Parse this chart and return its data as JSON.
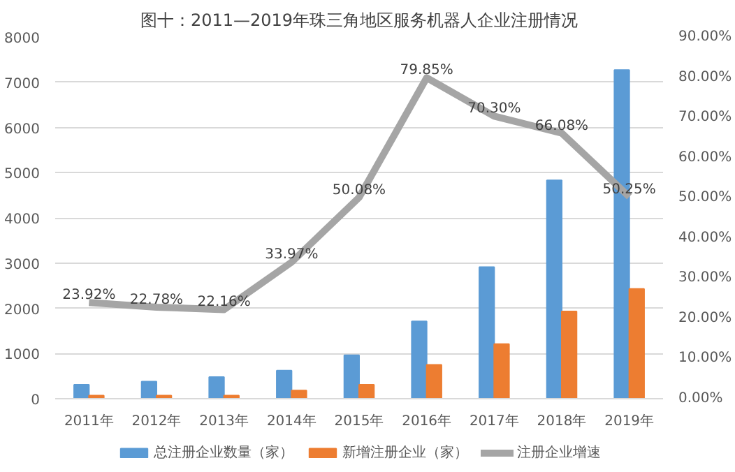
{
  "chart_data": {
    "type": "bar",
    "title": "图十：2011—2019年珠三角地区服务机器人企业注册情况",
    "categories": [
      "2011年",
      "2012年",
      "2013年",
      "2014年",
      "2015年",
      "2016年",
      "2017年",
      "2018年",
      "2019年"
    ],
    "series": [
      {
        "name": "总注册企业数量（家）",
        "color": "#5b9bd5",
        "values": [
          310,
          380,
          480,
          620,
          960,
          1710,
          2910,
          4830,
          7270
        ]
      },
      {
        "name": "新增注册企业（家）",
        "color": "#ed7d31",
        "values": [
          70,
          70,
          70,
          180,
          310,
          750,
          1210,
          1930,
          2430
        ]
      },
      {
        "name": "注册企业增速",
        "color": "#a5a5a5",
        "type": "line",
        "axis": "y2",
        "values": [
          23.92,
          22.78,
          22.16,
          33.97,
          50.08,
          79.85,
          70.3,
          66.08,
          50.25
        ],
        "value_labels": [
          "23.92%",
          "22.78%",
          "22.16%",
          "33.97%",
          "50.08%",
          "79.85%",
          "70.30%",
          "66.08%",
          "50.25%"
        ]
      }
    ],
    "ylim": [
      0,
      8000
    ],
    "yticks": [
      0,
      1000,
      2000,
      3000,
      4000,
      5000,
      6000,
      7000,
      8000
    ],
    "y2lim": [
      0,
      90
    ],
    "y2ticks": [
      {
        "value": 0,
        "label": "0.00%"
      },
      {
        "value": 10,
        "label": "10.00%"
      },
      {
        "value": 20,
        "label": "20.00%"
      },
      {
        "value": 30,
        "label": "30.00%"
      },
      {
        "value": 40,
        "label": "40.00%"
      },
      {
        "value": 50,
        "label": "50.00%"
      },
      {
        "value": 60,
        "label": "60.00%"
      },
      {
        "value": 70,
        "label": "70.00%"
      },
      {
        "value": 80,
        "label": "80.00%"
      },
      {
        "value": 90,
        "label": "90.00%"
      }
    ],
    "grid": "y",
    "legend": "bottom"
  }
}
